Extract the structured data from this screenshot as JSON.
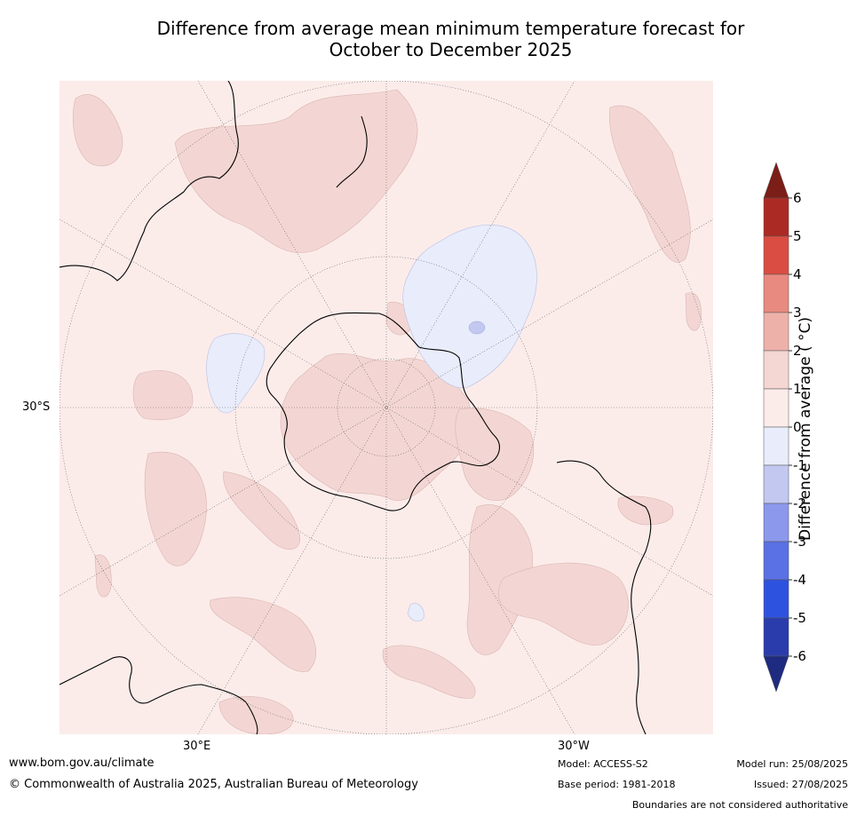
{
  "title_line1": "Difference from average mean minimum temperature forecast for",
  "title_line2": "October to December 2025",
  "map": {
    "projection": "south-polar-stereographic",
    "graticule_labels": {
      "lat": "30°S",
      "lon_left": "30°E",
      "lon_right": "30°W"
    },
    "colors": {
      "background": "#fbecea",
      "band_1_2": "#f3d6d3",
      "band_neg1_0": "#e9ecfa",
      "band_neg2_neg1": "#c2c8f0",
      "land_outline": "#000000",
      "graticule": "#555555"
    }
  },
  "colorbar": {
    "title": "Difference from average ( °C)",
    "tick_labels": [
      "6",
      "5",
      "4",
      "3",
      "2",
      "1",
      "0",
      "-1",
      "-2",
      "-3",
      "-4",
      "-5",
      "-6"
    ],
    "colors": [
      "#7b1e17",
      "#ac2a24",
      "#da4d42",
      "#e88a80",
      "#eeb1a9",
      "#f4d6d2",
      "#fbecea",
      "#e9ecfa",
      "#c2c8f0",
      "#8b98ec",
      "#5a70e5",
      "#2e52e0",
      "#2a3cac",
      "#1f2b80"
    ],
    "extend": "both"
  },
  "footer": {
    "website": "www.bom.gov.au/climate",
    "copyright": "© Commonwealth of Australia 2025, Australian Bureau of Meteorology",
    "model": "Model: ACCESS-S2",
    "base_period": "Base period: 1981-2018",
    "model_run": "Model run: 25/08/2025",
    "issued": "Issued: 27/08/2025",
    "disclaimer": "Boundaries are not considered authoritative"
  }
}
